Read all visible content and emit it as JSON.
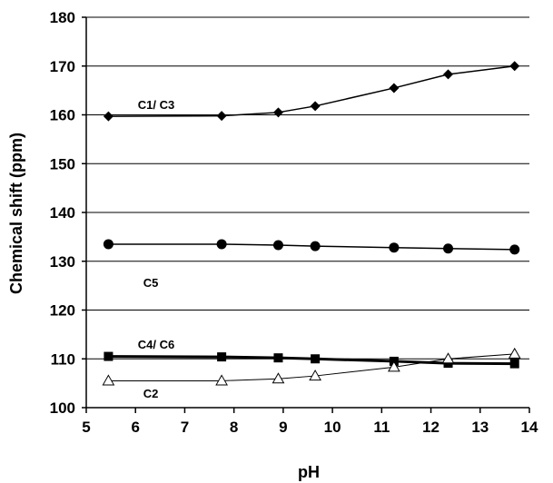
{
  "chart_data": {
    "type": "line",
    "xlabel": "pH",
    "ylabel": "Chemical shift (ppm)",
    "xlim": [
      5,
      14
    ],
    "ylim": [
      100,
      180
    ],
    "xticks": [
      "5",
      "6",
      "7",
      "8",
      "9",
      "10",
      "11",
      "12",
      "13",
      "14"
    ],
    "yticks": [
      "100",
      "110",
      "120",
      "130",
      "140",
      "150",
      "160",
      "170",
      "180"
    ],
    "grid": "horizontal",
    "x": [
      5.45,
      7.75,
      8.9,
      9.65,
      11.25,
      12.35,
      13.7
    ],
    "series": [
      {
        "name": "C1/ C3",
        "marker": "diamond",
        "values": [
          159.7,
          159.8,
          160.5,
          161.8,
          165.5,
          168.3,
          170.0
        ]
      },
      {
        "name": "C5",
        "marker": "circle",
        "values": [
          133.5,
          133.5,
          133.3,
          133.1,
          132.8,
          132.6,
          132.4
        ]
      },
      {
        "name": "C4/ C6",
        "marker": "square",
        "values": [
          110.5,
          110.4,
          110.2,
          110.0,
          109.5,
          109.1,
          109.0
        ]
      },
      {
        "name": "C2",
        "marker": "triangle-open",
        "values": [
          105.5,
          105.5,
          105.9,
          106.5,
          108.3,
          110.0,
          111.0
        ]
      }
    ]
  }
}
